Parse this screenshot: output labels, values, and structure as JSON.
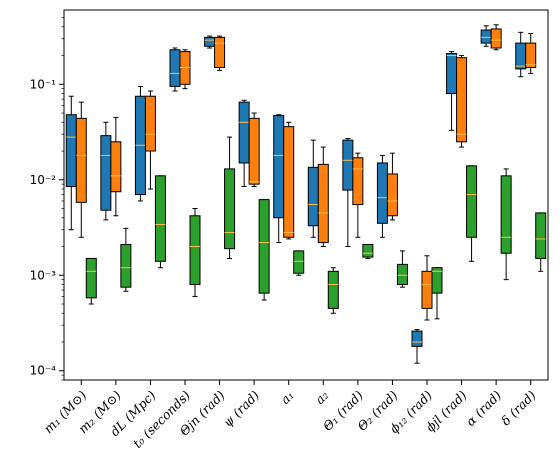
{
  "chart_data": {
    "type": "box",
    "y_scale": "log",
    "ylim": [
      8e-05,
      0.6
    ],
    "y_ticks": [
      {
        "value": 0.0001,
        "label": "10⁻⁴"
      },
      {
        "value": 0.001,
        "label": "10⁻³"
      },
      {
        "value": 0.01,
        "label": "10⁻²"
      },
      {
        "value": 0.1,
        "label": "10⁻¹"
      }
    ],
    "categories": [
      "m₁ (M⊙)",
      "m₂ (M⊙)",
      "dL (Mpc)",
      "t₀ (seconds)",
      "Θjn (rad)",
      "ψ (rad)",
      "a₁",
      "a₂",
      "Θ₁ (rad)",
      "Θ₂ (rad)",
      "ϕ₁₂ (rad)",
      "ϕjl (rad)",
      "α (rad)",
      "δ (rad)"
    ],
    "colors": {
      "blue": "#1f77b4",
      "orange": "#ff7f0e",
      "green": "#2ca02c",
      "median": "#ffbf4d"
    },
    "series": [
      {
        "color_key": "blue",
        "boxes": [
          {
            "cat": 0,
            "whislo": 0.003,
            "q1": 0.0085,
            "med": 0.028,
            "q3": 0.048,
            "whishi": 0.075
          },
          {
            "cat": 1,
            "whislo": 0.0038,
            "q1": 0.0048,
            "med": 0.018,
            "q3": 0.029,
            "whishi": 0.04
          },
          {
            "cat": 2,
            "whislo": 0.006,
            "q1": 0.007,
            "med": 0.023,
            "q3": 0.075,
            "whishi": 0.095
          },
          {
            "cat": 3,
            "whislo": 0.085,
            "q1": 0.095,
            "med": 0.13,
            "q3": 0.23,
            "whishi": 0.24
          },
          {
            "cat": 4,
            "whislo": 0.24,
            "q1": 0.25,
            "med": 0.29,
            "q3": 0.31,
            "whishi": 0.32
          },
          {
            "cat": 5,
            "whislo": 0.0085,
            "q1": 0.015,
            "med": 0.04,
            "q3": 0.065,
            "whishi": 0.068
          },
          {
            "cat": 6,
            "whislo": 0.0022,
            "q1": 0.004,
            "med": 0.018,
            "q3": 0.047,
            "whishi": 0.048
          },
          {
            "cat": 7,
            "whislo": 0.0025,
            "q1": 0.0033,
            "med": 0.0055,
            "q3": 0.0135,
            "whishi": 0.026
          },
          {
            "cat": 8,
            "whislo": 0.002,
            "q1": 0.0078,
            "med": 0.016,
            "q3": 0.026,
            "whishi": 0.027
          },
          {
            "cat": 9,
            "whislo": 0.0025,
            "q1": 0.0035,
            "med": 0.0065,
            "q3": 0.015,
            "whishi": 0.018
          },
          {
            "cat": 10,
            "whislo": 0.00012,
            "q1": 0.00018,
            "med": 0.0002,
            "q3": 0.00026,
            "whishi": 0.00027
          },
          {
            "cat": 11,
            "whislo": 0.033,
            "q1": 0.08,
            "med": 0.2,
            "q3": 0.21,
            "whishi": 0.22
          },
          {
            "cat": 12,
            "whislo": 0.25,
            "q1": 0.27,
            "med": 0.31,
            "q3": 0.37,
            "whishi": 0.41
          },
          {
            "cat": 13,
            "whislo": 0.12,
            "q1": 0.145,
            "med": 0.155,
            "q3": 0.27,
            "whishi": 0.35
          }
        ]
      },
      {
        "color_key": "orange",
        "boxes": [
          {
            "cat": 0,
            "whislo": 0.0025,
            "q1": 0.0058,
            "med": 0.018,
            "q3": 0.044,
            "whishi": 0.065
          },
          {
            "cat": 1,
            "whislo": 0.0042,
            "q1": 0.0075,
            "med": 0.011,
            "q3": 0.025,
            "whishi": 0.045
          },
          {
            "cat": 2,
            "whislo": 0.008,
            "q1": 0.02,
            "med": 0.03,
            "q3": 0.075,
            "whishi": 0.085
          },
          {
            "cat": 3,
            "whislo": 0.09,
            "q1": 0.1,
            "med": 0.15,
            "q3": 0.22,
            "whishi": 0.23
          },
          {
            "cat": 4,
            "whislo": 0.14,
            "q1": 0.15,
            "med": 0.27,
            "q3": 0.31,
            "whishi": 0.32
          },
          {
            "cat": 5,
            "whislo": 0.0085,
            "q1": 0.009,
            "med": 0.0095,
            "q3": 0.044,
            "whishi": 0.05
          },
          {
            "cat": 6,
            "whislo": 0.0024,
            "q1": 0.0025,
            "med": 0.0028,
            "q3": 0.036,
            "whishi": 0.04
          },
          {
            "cat": 7,
            "whislo": 0.002,
            "q1": 0.0022,
            "med": 0.0045,
            "q3": 0.0145,
            "whishi": 0.022
          },
          {
            "cat": 8,
            "whislo": 0.0025,
            "q1": 0.0055,
            "med": 0.013,
            "q3": 0.017,
            "whishi": 0.019
          },
          {
            "cat": 9,
            "whislo": 0.0038,
            "q1": 0.0042,
            "med": 0.006,
            "q3": 0.0115,
            "whishi": 0.019
          },
          {
            "cat": 10,
            "whislo": 0.00034,
            "q1": 0.00045,
            "med": 0.0008,
            "q3": 0.0011,
            "whishi": 0.0016
          },
          {
            "cat": 11,
            "whislo": 0.022,
            "q1": 0.025,
            "med": 0.03,
            "q3": 0.19,
            "whishi": 0.2
          },
          {
            "cat": 12,
            "whislo": 0.23,
            "q1": 0.24,
            "med": 0.29,
            "q3": 0.38,
            "whishi": 0.42
          },
          {
            "cat": 13,
            "whislo": 0.13,
            "q1": 0.15,
            "med": 0.16,
            "q3": 0.27,
            "whishi": 0.34
          }
        ]
      },
      {
        "color_key": "green",
        "boxes": [
          {
            "cat": 0,
            "whislo": 0.0005,
            "q1": 0.00058,
            "med": 0.0011,
            "q3": 0.0015,
            "whishi": 0.0015
          },
          {
            "cat": 1,
            "whislo": 0.00068,
            "q1": 0.00075,
            "med": 0.0012,
            "q3": 0.0021,
            "whishi": 0.0031
          },
          {
            "cat": 2,
            "whislo": 0.0012,
            "q1": 0.0014,
            "med": 0.0034,
            "q3": 0.011,
            "whishi": 0.011
          },
          {
            "cat": 3,
            "whislo": 0.0006,
            "q1": 0.0008,
            "med": 0.002,
            "q3": 0.0042,
            "whishi": 0.005
          },
          {
            "cat": 4,
            "whislo": 0.0015,
            "q1": 0.0019,
            "med": 0.0028,
            "q3": 0.013,
            "whishi": 0.028
          },
          {
            "cat": 5,
            "whislo": 0.00055,
            "q1": 0.00065,
            "med": 0.0022,
            "q3": 0.0062,
            "whishi": 0.0062
          },
          {
            "cat": 6,
            "whislo": 0.001,
            "q1": 0.00105,
            "med": 0.0014,
            "q3": 0.0018,
            "whishi": 0.0018
          },
          {
            "cat": 7,
            "whislo": 0.0004,
            "q1": 0.00045,
            "med": 0.0008,
            "q3": 0.0011,
            "whishi": 0.0012
          },
          {
            "cat": 8,
            "whislo": 0.0015,
            "q1": 0.00155,
            "med": 0.0017,
            "q3": 0.0021,
            "whishi": 0.0021
          },
          {
            "cat": 9,
            "whislo": 0.00075,
            "q1": 0.0008,
            "med": 0.001,
            "q3": 0.0013,
            "whishi": 0.0018
          },
          {
            "cat": 10,
            "whislo": 0.00035,
            "q1": 0.00065,
            "med": 0.0011,
            "q3": 0.0012,
            "whishi": 0.0012
          },
          {
            "cat": 11,
            "whislo": 0.0014,
            "q1": 0.0025,
            "med": 0.007,
            "q3": 0.014,
            "whishi": 0.014
          },
          {
            "cat": 12,
            "whislo": 0.0009,
            "q1": 0.0017,
            "med": 0.0025,
            "q3": 0.011,
            "whishi": 0.013
          },
          {
            "cat": 13,
            "whislo": 0.0011,
            "q1": 0.0015,
            "med": 0.0024,
            "q3": 0.0045,
            "whishi": 0.0045
          }
        ]
      }
    ]
  }
}
